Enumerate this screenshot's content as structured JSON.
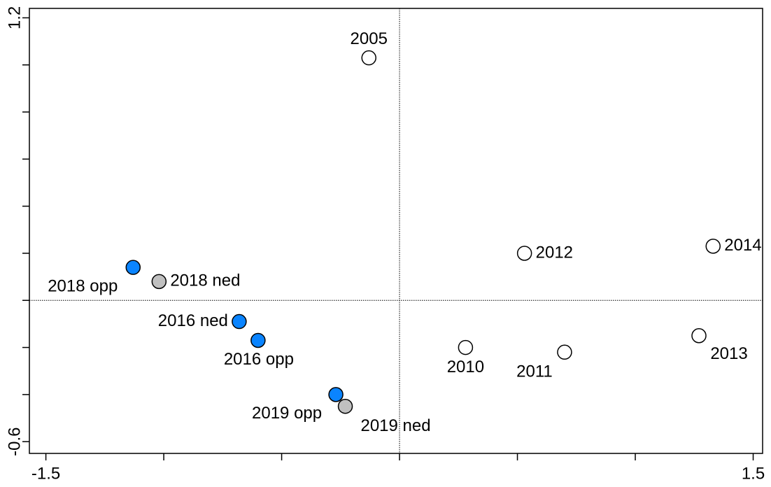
{
  "chart_data": {
    "type": "scatter",
    "xlim": [
      -1.57,
      1.54
    ],
    "ylim": [
      -0.65,
      1.24
    ],
    "xticks": [
      -1.5,
      1.5
    ],
    "xminor_ticks": [
      -1,
      -0.5,
      0,
      0.5,
      1
    ],
    "yticks": [
      -0.6,
      1.2
    ],
    "yminor_ticks": [
      -0.4,
      -0.2,
      0,
      0.2,
      0.4,
      0.6,
      0.8,
      1.0
    ],
    "zero_lines": true,
    "series": [
      {
        "color": "#ffffff",
        "labels": [
          "2005",
          "2012",
          "2014",
          "2010",
          "2011",
          "2013"
        ],
        "x": [
          -0.13,
          0.53,
          1.33,
          0.28,
          0.7,
          1.27
        ],
        "values": [
          1.03,
          0.2,
          0.23,
          -0.2,
          -0.22,
          -0.15
        ]
      },
      {
        "color": "#0a84ff",
        "labels": [
          "2018 opp",
          "2016 ned",
          "2016 opp",
          "2019 opp"
        ],
        "x": [
          -1.13,
          -0.68,
          -0.6,
          -0.27
        ],
        "values": [
          0.14,
          -0.09,
          -0.17,
          -0.4
        ]
      },
      {
        "color": "#c0c0c0",
        "labels": [
          "2018 ned",
          "2019 ned"
        ],
        "x": [
          -1.02,
          -0.23
        ],
        "values": [
          0.08,
          -0.45
        ]
      }
    ]
  }
}
